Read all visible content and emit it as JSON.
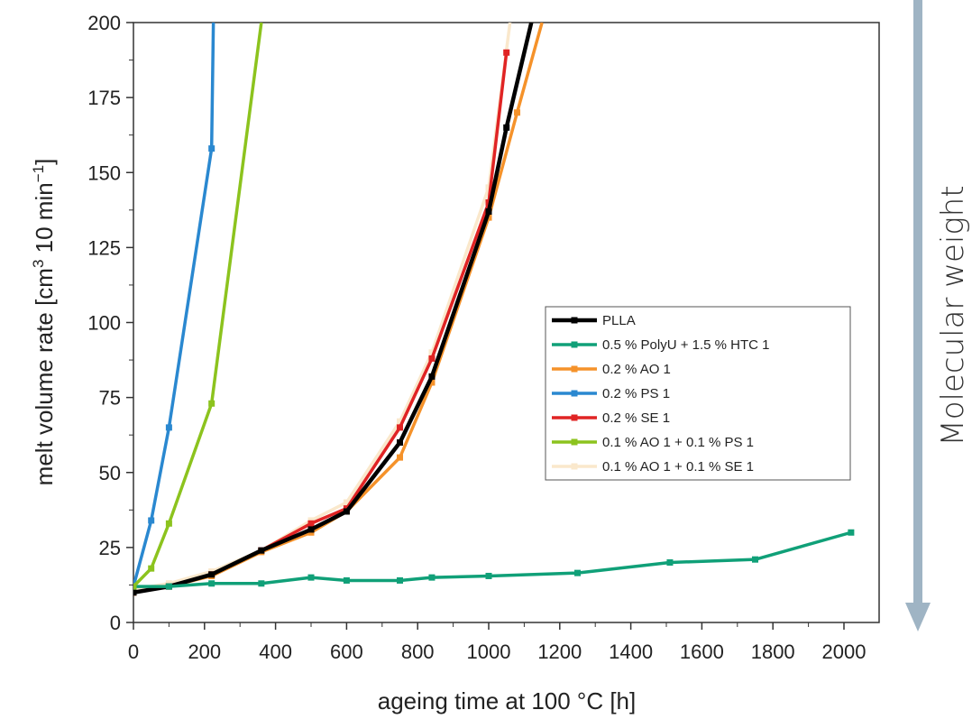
{
  "chart_data": {
    "type": "line",
    "xlabel": "ageing time at 100 °C [h]",
    "ylabel_main": "melt volume rate [cm",
    "ylabel_sup1": "3",
    "ylabel_mid": " 10 min",
    "ylabel_sup2": "−1",
    "ylabel_end": "]",
    "xlim": [
      0,
      2100
    ],
    "ylim": [
      0,
      200
    ],
    "xticks": [
      "0",
      "200",
      "400",
      "600",
      "800",
      "1000",
      "1200",
      "1400",
      "1600",
      "1800",
      "2000"
    ],
    "yticks": [
      "0",
      "25",
      "50",
      "75",
      "100",
      "125",
      "150",
      "175",
      "200"
    ],
    "legend_position": "center-right",
    "series": [
      {
        "name": "PLLA",
        "color": "#000000",
        "x": [
          0,
          100,
          220,
          360,
          500,
          600,
          750,
          840,
          1000,
          1050,
          1120
        ],
        "y": [
          10,
          12,
          16,
          24,
          31,
          37,
          60,
          82,
          137,
          165,
          200
        ]
      },
      {
        "name": "0.5 % PolyU + 1.5 % HTC 1",
        "color": "#10a078",
        "x": [
          0,
          100,
          220,
          360,
          500,
          600,
          750,
          840,
          1000,
          1250,
          1510,
          1750,
          2020
        ],
        "y": [
          12,
          12,
          13,
          13,
          15,
          14,
          14,
          15,
          15.5,
          16.5,
          20,
          21,
          30
        ]
      },
      {
        "name": "0.2 % AO 1",
        "color": "#f5922a",
        "x": [
          0,
          100,
          220,
          360,
          500,
          600,
          750,
          840,
          1000,
          1080,
          1150
        ],
        "y": [
          10,
          12,
          15.5,
          23.5,
          30,
          37,
          55,
          80,
          135,
          170,
          200
        ]
      },
      {
        "name": "0.2 % PS 1",
        "color": "#2a88d0",
        "x": [
          0,
          50,
          100,
          220,
          225
        ],
        "y": [
          12,
          34,
          65,
          158,
          200
        ]
      },
      {
        "name": "0.2 % SE 1",
        "color": "#e02424",
        "x": [
          0,
          100,
          220,
          360,
          500,
          600,
          750,
          840,
          1000,
          1050
        ],
        "y": [
          10,
          12,
          16,
          24,
          33,
          38,
          65,
          88,
          140,
          190
        ]
      },
      {
        "name": "0.1 % AO 1 + 0.1 % PS 1",
        "color": "#8cc31e",
        "x": [
          0,
          50,
          100,
          220,
          360
        ],
        "y": [
          12,
          18,
          33,
          73,
          200
        ]
      },
      {
        "name": "0.1 % AO 1 + 0.1 % SE 1",
        "color": "#fae8cc",
        "x": [
          0,
          100,
          220,
          360,
          500,
          600,
          750,
          840,
          1000,
          1060
        ],
        "y": [
          11,
          13,
          17,
          24,
          34,
          40,
          67,
          90,
          145,
          200
        ]
      }
    ]
  },
  "side_label": "Molecular weight",
  "arrow_color": "#9fb4c4"
}
